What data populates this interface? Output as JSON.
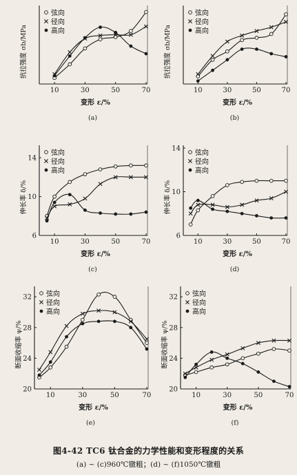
{
  "figure": {
    "caption": "图4-42   TC6 钛合金的力学性能和变形程度的关系",
    "subcaption": "(a) ~ (c)960℃镦粗；(d) ~ (f)1050℃镦粗"
  },
  "chart_data": [
    {
      "id": "a",
      "type": "line",
      "panel_label": "(a)",
      "xlabel": "变形 ε/%",
      "ylabel": "抗拉强度 σb/MPa",
      "xlim": [
        0,
        70
      ],
      "ylim": [
        0,
        10
      ],
      "xticks": [
        10,
        30,
        50,
        70
      ],
      "yticks": [],
      "legend": [
        "弦向",
        "径向",
        "高向"
      ],
      "legend_position": "top-left",
      "series": [
        {
          "name": "弦向",
          "marker": "circle-open",
          "x": [
            10,
            20,
            30,
            40,
            50,
            60,
            70
          ],
          "y": [
            0.8,
            2.6,
            4.7,
            5.9,
            6.2,
            7.0,
            9.5
          ]
        },
        {
          "name": "径向",
          "marker": "x",
          "x": [
            10,
            20,
            30,
            40,
            50,
            60,
            70
          ],
          "y": [
            1.3,
            4.2,
            6.0,
            6.4,
            6.5,
            6.5,
            7.6
          ]
        },
        {
          "name": "高向",
          "marker": "dot",
          "x": [
            10,
            20,
            30,
            40,
            50,
            60,
            70
          ],
          "y": [
            1.1,
            3.7,
            6.1,
            7.5,
            6.8,
            5.0,
            4.0
          ]
        }
      ]
    },
    {
      "id": "b",
      "type": "line",
      "panel_label": "(b)",
      "xlabel": "变形 ε/%",
      "ylabel": "抗拉强度 σb/MPa",
      "xlim": [
        0,
        70
      ],
      "ylim": [
        0,
        10
      ],
      "xticks": [
        10,
        30,
        50,
        70
      ],
      "yticks": [],
      "legend": [
        "弦向",
        "径向",
        "高向"
      ],
      "legend_position": "top-left",
      "series": [
        {
          "name": "弦向",
          "marker": "circle-open",
          "x": [
            10,
            20,
            30,
            40,
            50,
            60,
            70
          ],
          "y": [
            1.0,
            3.2,
            4.3,
            5.8,
            6.1,
            6.6,
            9.2
          ]
        },
        {
          "name": "径向",
          "marker": "x",
          "x": [
            10,
            20,
            30,
            40,
            50,
            60,
            70
          ],
          "y": [
            1.3,
            3.7,
            5.6,
            6.4,
            7.0,
            7.5,
            8.2
          ]
        },
        {
          "name": "高向",
          "marker": "dot",
          "x": [
            10,
            20,
            30,
            40,
            50,
            60,
            70
          ],
          "y": [
            0.4,
            1.8,
            3.2,
            4.6,
            4.6,
            4.0,
            3.6
          ]
        }
      ]
    },
    {
      "id": "c",
      "type": "line",
      "panel_label": "(c)",
      "xlabel": "变形 ε/%",
      "ylabel": "伸长率 δ/%",
      "xlim": [
        0,
        70
      ],
      "ylim": [
        6,
        15
      ],
      "xticks": [
        10,
        30,
        50,
        70
      ],
      "yticks": [
        6,
        10,
        14
      ],
      "legend": [
        "弦向",
        "径向",
        "高向"
      ],
      "legend_position": "top-left",
      "series": [
        {
          "name": "弦向",
          "marker": "circle-open",
          "x": [
            5,
            10,
            20,
            30,
            40,
            50,
            60,
            70
          ],
          "y": [
            8.0,
            10.0,
            11.5,
            12.3,
            12.8,
            13.1,
            13.2,
            13.2
          ]
        },
        {
          "name": "径向",
          "marker": "x",
          "x": [
            5,
            10,
            20,
            30,
            40,
            50,
            60,
            70
          ],
          "y": [
            7.8,
            9.0,
            9.2,
            9.8,
            11.3,
            12.0,
            12.0,
            12.0
          ]
        },
        {
          "name": "高向",
          "marker": "dot",
          "x": [
            5,
            10,
            20,
            30,
            40,
            50,
            60,
            70
          ],
          "y": [
            7.5,
            9.4,
            10.2,
            8.6,
            8.3,
            8.2,
            8.2,
            8.4
          ]
        }
      ]
    },
    {
      "id": "d",
      "type": "line",
      "panel_label": "(d)",
      "xlabel": "变形 ε/%",
      "ylabel": "伸长率 δ/%",
      "xlim": [
        0,
        70
      ],
      "ylim": [
        6,
        14
      ],
      "xticks": [
        10,
        30,
        50,
        70
      ],
      "yticks": [
        6,
        10,
        14
      ],
      "legend": [
        "弦向",
        "径向",
        "高向"
      ],
      "legend_position": "top-left",
      "series": [
        {
          "name": "弦向",
          "marker": "circle-open",
          "x": [
            5,
            10,
            20,
            30,
            40,
            50,
            60,
            70
          ],
          "y": [
            7.0,
            8.3,
            9.6,
            10.6,
            10.9,
            11.0,
            11.0,
            11.0
          ]
        },
        {
          "name": "径向",
          "marker": "x",
          "x": [
            5,
            10,
            20,
            30,
            40,
            50,
            60,
            70
          ],
          "y": [
            8.0,
            8.8,
            8.8,
            8.6,
            8.8,
            9.2,
            9.4,
            10.0
          ]
        },
        {
          "name": "高向",
          "marker": "dot",
          "x": [
            5,
            10,
            20,
            30,
            40,
            50,
            60,
            70
          ],
          "y": [
            8.5,
            9.2,
            8.4,
            8.2,
            8.0,
            7.8,
            7.6,
            7.6
          ]
        }
      ]
    },
    {
      "id": "e",
      "type": "line",
      "panel_label": "(e)",
      "xlabel": "变形 ε/%",
      "ylabel": "断面收缩率 ψ/%",
      "xlim": [
        0,
        70
      ],
      "ylim": [
        20,
        33
      ],
      "xticks": [
        10,
        30,
        50,
        70
      ],
      "yticks": [
        20,
        24,
        28,
        32
      ],
      "legend": [
        "弦向",
        "径向",
        "高向"
      ],
      "legend_position": "top-left",
      "series": [
        {
          "name": "弦向",
          "marker": "circle-open",
          "x": [
            3,
            10,
            20,
            30,
            40,
            50,
            60,
            70
          ],
          "y": [
            21.5,
            22.8,
            25.5,
            29.0,
            32.3,
            32.0,
            29.0,
            26.0
          ]
        },
        {
          "name": "径向",
          "marker": "x",
          "x": [
            3,
            10,
            20,
            30,
            40,
            50,
            60,
            70
          ],
          "y": [
            22.5,
            24.8,
            28.2,
            29.8,
            30.2,
            30.0,
            28.8,
            26.5
          ]
        },
        {
          "name": "高向",
          "marker": "dot",
          "x": [
            3,
            10,
            20,
            30,
            40,
            50,
            60,
            70
          ],
          "y": [
            21.8,
            23.5,
            26.8,
            28.5,
            28.8,
            28.8,
            28.0,
            25.2
          ]
        }
      ]
    },
    {
      "id": "f",
      "type": "line",
      "panel_label": "(f)",
      "xlabel": "变形 ε/%",
      "ylabel": "断面收缩率 ψ/%",
      "xlim": [
        0,
        70
      ],
      "ylim": [
        20,
        33
      ],
      "xticks": [
        10,
        30,
        50,
        70
      ],
      "yticks": [
        20,
        24,
        28,
        32
      ],
      "legend": [
        "弦向",
        "径向",
        "高向"
      ],
      "legend_position": "top-left",
      "series": [
        {
          "name": "弦向",
          "marker": "circle-open",
          "x": [
            3,
            10,
            20,
            30,
            40,
            50,
            60,
            70
          ],
          "y": [
            21.8,
            22.2,
            22.8,
            23.2,
            24.0,
            24.6,
            25.2,
            25.0
          ]
        },
        {
          "name": "径向",
          "marker": "x",
          "x": [
            3,
            10,
            20,
            30,
            40,
            50,
            60,
            70
          ],
          "y": [
            22.0,
            22.8,
            23.8,
            24.5,
            25.3,
            26.0,
            26.3,
            26.3
          ]
        },
        {
          "name": "高向",
          "marker": "dot",
          "x": [
            3,
            10,
            20,
            30,
            40,
            50,
            60,
            70
          ],
          "y": [
            21.5,
            23.2,
            24.8,
            24.0,
            23.3,
            22.2,
            21.0,
            20.3
          ]
        }
      ]
    }
  ]
}
